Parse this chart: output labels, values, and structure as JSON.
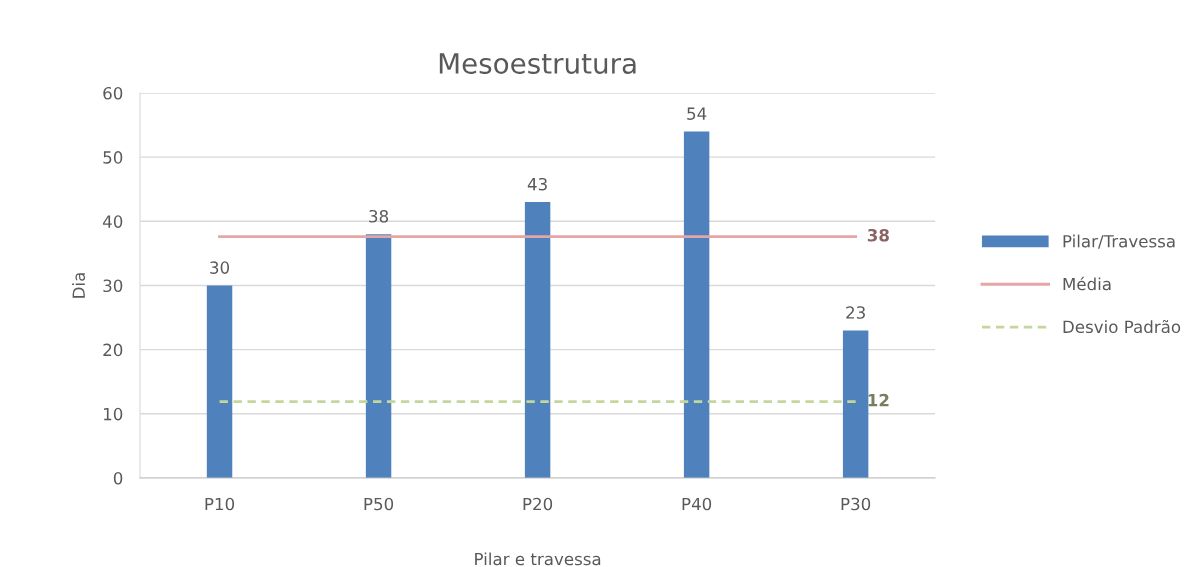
{
  "chart_data": {
    "type": "bar",
    "title": "Mesoestrutura",
    "xlabel": "Pilar e travessa",
    "ylabel": "Dia",
    "categories": [
      "P10",
      "P50",
      "P20",
      "P40",
      "P30"
    ],
    "series": [
      {
        "name": "Pilar/Travessa",
        "color": "#4f81bd",
        "values": [
          30,
          38,
          43,
          54,
          23
        ],
        "value_labels": [
          "30",
          "38",
          "43",
          "54",
          "23"
        ]
      },
      {
        "name": "Média",
        "type": "line",
        "color": "#e6a5a5",
        "line_style": "solid",
        "values": [
          37.6,
          37.6,
          37.6,
          37.6,
          37.6
        ],
        "value_labels": [
          null,
          null,
          null,
          null,
          "38"
        ]
      },
      {
        "name": "Desvio Padrão",
        "type": "line",
        "color": "#c3d69b",
        "line_style": "dashed",
        "values": [
          11.9,
          11.9,
          11.9,
          11.9,
          11.9
        ],
        "value_labels": [
          null,
          null,
          null,
          null,
          "12"
        ]
      }
    ],
    "ylim": [
      0,
      60
    ],
    "yticks": [
      0,
      10,
      20,
      30,
      40,
      50,
      60
    ],
    "grid": "y",
    "legend": "right"
  }
}
